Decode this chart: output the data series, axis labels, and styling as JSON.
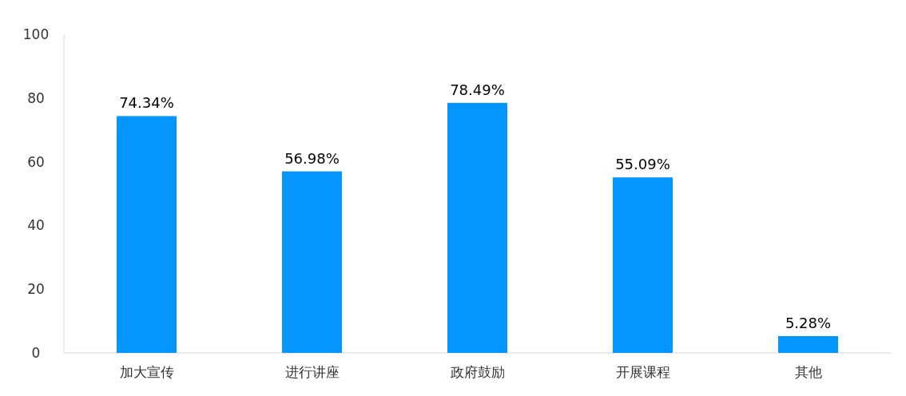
{
  "chart_data": {
    "type": "bar",
    "categories": [
      "加大宣传",
      "进行讲座",
      "政府鼓励",
      "开展课程",
      "其他"
    ],
    "values": [
      74.34,
      56.98,
      78.49,
      55.09,
      5.28
    ],
    "value_labels": [
      "74.34%",
      "56.98%",
      "78.49%",
      "55.09%",
      "5.28%"
    ],
    "color": "#0596fd",
    "ylim": [
      0,
      100
    ],
    "yticks": [
      0,
      20,
      40,
      60,
      80,
      100
    ]
  }
}
